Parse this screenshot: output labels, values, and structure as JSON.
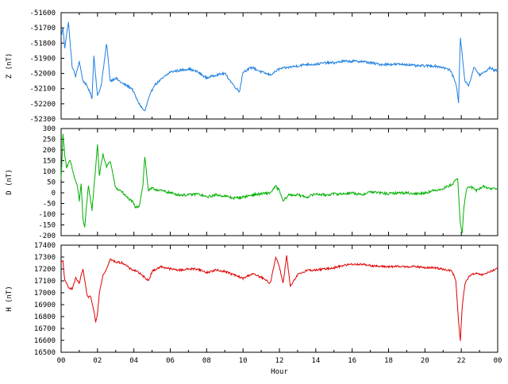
{
  "chart_data": [
    {
      "type": "line",
      "ylabel": "Z (nT)",
      "color": "#1e7fe0",
      "ylim": [
        -52300,
        -51600
      ],
      "yticks": [
        -51600,
        -51700,
        -51800,
        -51900,
        -52000,
        -52100,
        -52200,
        -52300
      ],
      "x": [
        0,
        0.1,
        0.2,
        0.4,
        0.6,
        0.8,
        1.0,
        1.2,
        1.3,
        1.5,
        1.7,
        1.8,
        2.0,
        2.2,
        2.4,
        2.5,
        2.7,
        3.0,
        3.3,
        3.6,
        3.9,
        4.2,
        4.4,
        4.6,
        4.8,
        5.1,
        5.4,
        5.7,
        6.0,
        6.5,
        7.0,
        7.5,
        8.0,
        8.5,
        9.0,
        9.5,
        9.8,
        10.0,
        10.5,
        11.0,
        11.5,
        12.0,
        12.5,
        13.0,
        13.5,
        14.0,
        14.5,
        15.0,
        15.5,
        16.0,
        16.5,
        17.0,
        17.5,
        18.0,
        18.5,
        19.0,
        19.5,
        20.0,
        20.5,
        21.0,
        21.4,
        21.7,
        21.85,
        21.95,
        22.05,
        22.2,
        22.4,
        22.7,
        23.0,
        23.3,
        23.6,
        23.8,
        24.0
      ],
      "values": [
        -51760,
        -51700,
        -51830,
        -51660,
        -51950,
        -52020,
        -51920,
        -52050,
        -52060,
        -52100,
        -52160,
        -51880,
        -52150,
        -52080,
        -51900,
        -51800,
        -52050,
        -52030,
        -52060,
        -52080,
        -52100,
        -52180,
        -52220,
        -52250,
        -52170,
        -52080,
        -52050,
        -52020,
        -51990,
        -51980,
        -51970,
        -51990,
        -52030,
        -52010,
        -52000,
        -52080,
        -52120,
        -51990,
        -51960,
        -51990,
        -52010,
        -51970,
        -51960,
        -51950,
        -51940,
        -51940,
        -51930,
        -51930,
        -51920,
        -51920,
        -51920,
        -51930,
        -51940,
        -51940,
        -51940,
        -51940,
        -51950,
        -51950,
        -51950,
        -51960,
        -51980,
        -52060,
        -52190,
        -51760,
        -51880,
        -52050,
        -52080,
        -51960,
        -52010,
        -51990,
        -51960,
        -51980,
        -51980
      ]
    },
    {
      "type": "line",
      "ylabel": "D (nT)",
      "color": "#00b000",
      "ylim": [
        -200,
        300
      ],
      "yticks": [
        300,
        250,
        200,
        150,
        100,
        50,
        0,
        -50,
        -100,
        -150,
        -200
      ],
      "x": [
        0,
        0.1,
        0.2,
        0.3,
        0.5,
        0.7,
        0.9,
        1.0,
        1.1,
        1.2,
        1.3,
        1.4,
        1.5,
        1.6,
        1.7,
        1.8,
        1.9,
        2.0,
        2.1,
        2.3,
        2.5,
        2.7,
        3.0,
        3.3,
        3.6,
        3.9,
        4.1,
        4.3,
        4.5,
        4.6,
        4.8,
        5.0,
        5.5,
        6.0,
        6.5,
        7.0,
        7.5,
        8.0,
        8.5,
        9.0,
        9.5,
        10.0,
        10.5,
        11.0,
        11.5,
        11.8,
        12.0,
        12.2,
        12.5,
        13.0,
        13.5,
        14.0,
        14.5,
        15.0,
        15.5,
        16.0,
        16.5,
        17.0,
        17.5,
        18.0,
        18.5,
        19.0,
        19.5,
        20.0,
        20.5,
        21.0,
        21.5,
        21.8,
        21.95,
        22.05,
        22.15,
        22.3,
        22.5,
        22.8,
        23.2,
        23.6,
        24.0
      ],
      "values": [
        60,
        270,
        180,
        120,
        150,
        80,
        30,
        -40,
        40,
        -120,
        -160,
        -60,
        30,
        -20,
        -80,
        20,
        120,
        230,
        80,
        180,
        120,
        150,
        20,
        10,
        -20,
        -40,
        -70,
        -60,
        40,
        170,
        10,
        20,
        10,
        0,
        -10,
        -10,
        -5,
        -20,
        -10,
        -15,
        -25,
        -20,
        -10,
        -5,
        0,
        30,
        10,
        -40,
        -10,
        -10,
        -20,
        -5,
        -10,
        -5,
        -5,
        0,
        -10,
        5,
        0,
        -5,
        0,
        0,
        -5,
        0,
        10,
        20,
        40,
        70,
        -150,
        -190,
        -60,
        20,
        30,
        10,
        30,
        20,
        20
      ]
    },
    {
      "type": "line",
      "ylabel": "H (nT)",
      "color": "#e00000",
      "ylim": [
        16500,
        17400
      ],
      "yticks": [
        17400,
        17300,
        17200,
        17100,
        17000,
        16900,
        16800,
        16700,
        16600,
        16500
      ],
      "xlabel": "Hour",
      "xticks": [
        "00",
        "02",
        "04",
        "06",
        "08",
        "10",
        "12",
        "14",
        "16",
        "18",
        "20",
        "22",
        "00"
      ],
      "x": [
        0,
        0.1,
        0.2,
        0.4,
        0.6,
        0.8,
        1.0,
        1.2,
        1.4,
        1.5,
        1.6,
        1.8,
        1.9,
        2.0,
        2.1,
        2.3,
        2.5,
        2.7,
        3.0,
        3.4,
        3.8,
        4.2,
        4.4,
        4.6,
        4.8,
        5.0,
        5.5,
        6.0,
        6.5,
        7.0,
        7.5,
        8.0,
        8.5,
        9.0,
        9.5,
        10.0,
        10.5,
        11.0,
        11.5,
        11.8,
        12.0,
        12.2,
        12.4,
        12.6,
        13.0,
        13.5,
        14.0,
        14.5,
        15.0,
        15.5,
        16.0,
        16.5,
        17.0,
        17.5,
        18.0,
        18.5,
        19.0,
        19.5,
        20.0,
        20.5,
        21.0,
        21.5,
        21.7,
        21.85,
        21.95,
        22.05,
        22.2,
        22.5,
        22.8,
        23.2,
        23.6,
        24.0
      ],
      "values": [
        17250,
        17270,
        17100,
        17050,
        17030,
        17120,
        17080,
        17200,
        17000,
        16950,
        16980,
        16850,
        16760,
        16830,
        17000,
        17150,
        17200,
        17280,
        17260,
        17250,
        17200,
        17180,
        17150,
        17130,
        17100,
        17180,
        17220,
        17200,
        17190,
        17200,
        17200,
        17170,
        17190,
        17180,
        17150,
        17120,
        17160,
        17130,
        17080,
        17300,
        17220,
        17080,
        17310,
        17050,
        17150,
        17190,
        17190,
        17200,
        17210,
        17230,
        17240,
        17240,
        17230,
        17220,
        17220,
        17220,
        17220,
        17220,
        17210,
        17210,
        17200,
        17180,
        17100,
        16750,
        16600,
        16880,
        17080,
        17150,
        17160,
        17150,
        17180,
        17200
      ]
    }
  ]
}
